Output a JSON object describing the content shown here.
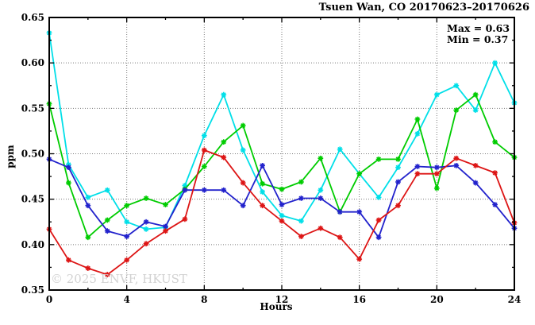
{
  "title": "Tsuen Wan, CO 20170623–20170626",
  "annotation": {
    "max_label": "Max = 0.63",
    "min_label": "Min = 0.37"
  },
  "watermark": "© 2025 ENVF, HKUST",
  "chart_data": {
    "type": "line",
    "title": "Tsuen Wan, CO 20170623–20170626",
    "xlabel": "Hours",
    "ylabel": "ppm",
    "xlim": [
      0,
      24
    ],
    "ylim": [
      0.35,
      0.65
    ],
    "x_major_ticks": [
      0,
      4,
      8,
      12,
      16,
      20,
      24
    ],
    "x_minor_step": 2,
    "y_major_ticks": [
      0.35,
      0.4,
      0.45,
      0.5,
      0.55,
      0.6,
      0.65
    ],
    "y_minor_step": 0.025,
    "grid": "dotted gray at major ticks, mirrored inward ticks on all four sides",
    "legend_position": "none",
    "marker": "asterisk",
    "x": [
      0,
      1,
      2,
      3,
      4,
      5,
      6,
      7,
      8,
      9,
      10,
      11,
      12,
      13,
      14,
      15,
      16,
      17,
      18,
      19,
      20,
      21,
      22,
      23,
      24
    ],
    "series": [
      {
        "name": "cyan",
        "color": "#00dfe8",
        "values": [
          0.633,
          0.488,
          0.452,
          0.46,
          0.425,
          0.417,
          0.419,
          0.465,
          0.52,
          0.565,
          0.504,
          0.458,
          0.432,
          0.426,
          0.46,
          0.505,
          0.478,
          0.452,
          0.485,
          0.522,
          0.565,
          0.575,
          0.548,
          0.6,
          0.556
        ]
      },
      {
        "name": "green",
        "color": "#00cc00",
        "values": [
          0.555,
          0.468,
          0.408,
          0.427,
          0.443,
          0.451,
          0.444,
          0.461,
          0.486,
          0.513,
          0.531,
          0.467,
          0.461,
          0.469,
          0.495,
          0.436,
          0.478,
          0.494,
          0.494,
          0.538,
          0.462,
          0.548,
          0.565,
          0.513,
          0.496
        ]
      },
      {
        "name": "blue",
        "color": "#2222cc",
        "values": [
          0.494,
          0.485,
          0.443,
          0.415,
          0.409,
          0.425,
          0.42,
          0.46,
          0.46,
          0.46,
          0.443,
          0.487,
          0.444,
          0.451,
          0.451,
          0.436,
          0.436,
          0.408,
          0.469,
          0.486,
          0.485,
          0.487,
          0.468,
          0.444,
          0.418
        ]
      },
      {
        "name": "red",
        "color": "#dd1515",
        "values": [
          0.417,
          0.383,
          0.374,
          0.367,
          0.383,
          0.401,
          0.415,
          0.428,
          0.504,
          0.496,
          0.468,
          0.443,
          0.426,
          0.409,
          0.418,
          0.408,
          0.384,
          0.427,
          0.443,
          0.478,
          0.478,
          0.495,
          0.487,
          0.479,
          0.424
        ]
      }
    ]
  }
}
